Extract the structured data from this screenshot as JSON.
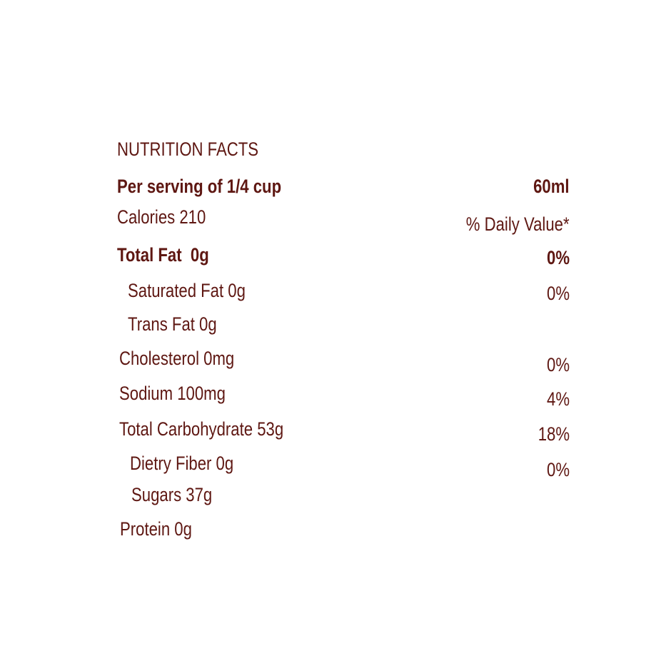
{
  "title": "NUTRITION FACTS",
  "rows": [
    {
      "label": "Per serving of 1/4 cup",
      "value": "60ml"
    },
    {
      "label": "Calories 210",
      "value": "% Daily Value*"
    },
    {
      "label": "Total Fat  0g",
      "value": "0%"
    },
    {
      "label": "Saturated Fat 0g",
      "value": "0%"
    },
    {
      "label": "Trans Fat 0g"
    },
    {
      "label": "Cholesterol 0mg",
      "value": "0%"
    },
    {
      "label": "Sodium 100mg",
      "value": "4%"
    },
    {
      "label": "Total Carbohydrate 53g",
      "value": "18%"
    },
    {
      "label": "Dietry Fiber 0g",
      "value": "0%"
    },
    {
      "label": "Sugars 37g"
    },
    {
      "label": "Protein 0g"
    }
  ]
}
